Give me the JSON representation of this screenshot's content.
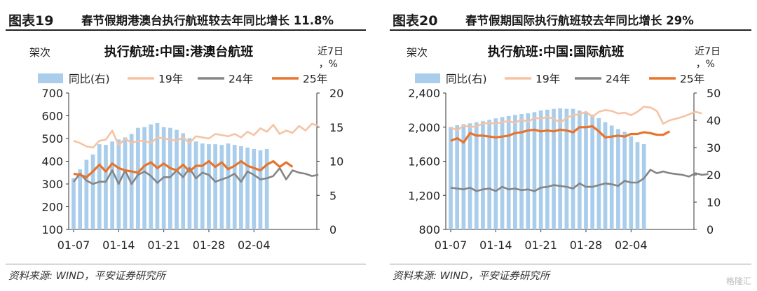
{
  "watermark": "格隆汇",
  "chart_data": [
    {
      "type": "bar+line",
      "fig_num": "图表19",
      "fig_title": "春节假期港澳台执行航班较去年同比增长 11.8%",
      "title": "执行航班:中国:港澳台航班",
      "ylabel_left": "架次",
      "ylabel_right": "近7日，%",
      "ylim_left": [
        100,
        700
      ],
      "yticks_left": [
        100,
        200,
        300,
        400,
        500,
        600,
        700
      ],
      "ylim_right": [
        0,
        20
      ],
      "yticks_right": [
        0,
        5,
        10,
        15,
        20
      ],
      "xtick_labels": [
        "01-07",
        "01-14",
        "01-21",
        "01-28",
        "02-04"
      ],
      "xtick_days": [
        0,
        7,
        14,
        21,
        28
      ],
      "x_days": 38,
      "source": "资料来源: WIND，平安证券研究所",
      "series": [
        {
          "name": "同比(右)",
          "kind": "bar",
          "axis": "right",
          "color": "#a9cdeb",
          "values": [
            7.5,
            8.8,
            10.2,
            11.0,
            12.5,
            12.4,
            12.9,
            13.2,
            13.5,
            14.0,
            14.9,
            15.0,
            15.4,
            15.6,
            15.0,
            14.9,
            14.6,
            14.1,
            13.4,
            12.9,
            12.6,
            12.5,
            12.5,
            12.4,
            12.6,
            12.4,
            12.2,
            12.0,
            11.8,
            11.6,
            11.8
          ]
        },
        {
          "name": "19年",
          "kind": "line",
          "axis": "left",
          "color": "#f5c3a4",
          "values": [
            490,
            480,
            465,
            460,
            490,
            495,
            535,
            470,
            500,
            480,
            490,
            490,
            480,
            505,
            500,
            495,
            490,
            505,
            480,
            510,
            505,
            500,
            520,
            515,
            510,
            520,
            505,
            530,
            515,
            545,
            530,
            560,
            520,
            535,
            525,
            555,
            535,
            565,
            555
          ]
        },
        {
          "name": "24年",
          "kind": "line",
          "axis": "left",
          "color": "#858585",
          "values": [
            310,
            345,
            315,
            300,
            310,
            310,
            360,
            300,
            360,
            300,
            340,
            355,
            335,
            305,
            330,
            330,
            360,
            330,
            370,
            325,
            350,
            340,
            310,
            320,
            330,
            345,
            310,
            355,
            340,
            320,
            325,
            335,
            370,
            320,
            360,
            350,
            345,
            335,
            340
          ]
        },
        {
          "name": "25年",
          "kind": "line",
          "axis": "left",
          "color": "#e8742b",
          "values": [
            345,
            340,
            330,
            355,
            385,
            355,
            390,
            370,
            360,
            355,
            350,
            380,
            395,
            370,
            390,
            370,
            360,
            385,
            355,
            380,
            380,
            400,
            375,
            395,
            365,
            380,
            400,
            380,
            370,
            360,
            385,
            400,
            375,
            395,
            375
          ]
        }
      ]
    },
    {
      "type": "bar+line",
      "fig_num": "图表20",
      "fig_title": "春节假期国际执行航班较去年同比增长 29%",
      "title": "执行航班:中国:国际航班",
      "ylabel_left": "架次",
      "ylabel_right": "近7日，%",
      "ylim_left": [
        800,
        2400
      ],
      "yticks_left": [
        800,
        1200,
        1600,
        2000,
        2400
      ],
      "ylim_right": [
        0,
        50
      ],
      "yticks_right": [
        0,
        10,
        20,
        30,
        40,
        50
      ],
      "xtick_labels": [
        "01-07",
        "01-14",
        "01-21",
        "01-28",
        "02-04"
      ],
      "xtick_days": [
        0,
        7,
        14,
        21,
        28
      ],
      "x_days": 38,
      "source": "资料来源: WIND，平安证券研究所",
      "series": [
        {
          "name": "同比(右)",
          "kind": "bar",
          "axis": "right",
          "color": "#a9cdeb",
          "values": [
            37.5,
            38.2,
            38.6,
            38.9,
            39.3,
            39.7,
            40.2,
            40.7,
            41.2,
            41.6,
            42.0,
            42.3,
            42.6,
            43.0,
            43.6,
            43.9,
            44.2,
            44.4,
            44.2,
            44.2,
            43.6,
            43.0,
            42.1,
            40.8,
            39.3,
            38.1,
            36.8,
            35.8,
            34.1,
            32.0,
            31.3
          ]
        },
        {
          "name": "19年",
          "kind": "line",
          "axis": "left",
          "color": "#f5c3a4",
          "values": [
            2000,
            1960,
            2020,
            2000,
            2010,
            2040,
            2050,
            2040,
            2060,
            2070,
            2050,
            2090,
            2060,
            2110,
            2100,
            2120,
            2100,
            2050,
            2110,
            2140,
            2150,
            2180,
            2120,
            2180,
            2200,
            2190,
            2160,
            2170,
            2140,
            2180,
            2240,
            2230,
            2190,
            2040,
            2080,
            2100,
            2120,
            2150,
            2180,
            2160
          ]
        },
        {
          "name": "24年",
          "kind": "line",
          "axis": "left",
          "color": "#858585",
          "values": [
            1290,
            1280,
            1270,
            1290,
            1250,
            1270,
            1280,
            1250,
            1300,
            1270,
            1280,
            1260,
            1270,
            1250,
            1290,
            1300,
            1320,
            1310,
            1300,
            1280,
            1340,
            1300,
            1300,
            1320,
            1340,
            1330,
            1310,
            1370,
            1350,
            1350,
            1400,
            1500,
            1460,
            1480,
            1460,
            1450,
            1440,
            1420,
            1460,
            1440,
            1450
          ]
        },
        {
          "name": "25年",
          "kind": "line",
          "axis": "left",
          "color": "#e8742b",
          "values": [
            1840,
            1870,
            1820,
            1930,
            1900,
            1900,
            1890,
            1880,
            1890,
            1900,
            1930,
            1940,
            1960,
            1970,
            1950,
            1960,
            1950,
            1970,
            1960,
            1940,
            2000,
            2000,
            2010,
            1950,
            1880,
            1890,
            1900,
            1890,
            1920,
            1920,
            1940,
            1930,
            1910,
            1910,
            1950
          ]
        }
      ]
    }
  ]
}
